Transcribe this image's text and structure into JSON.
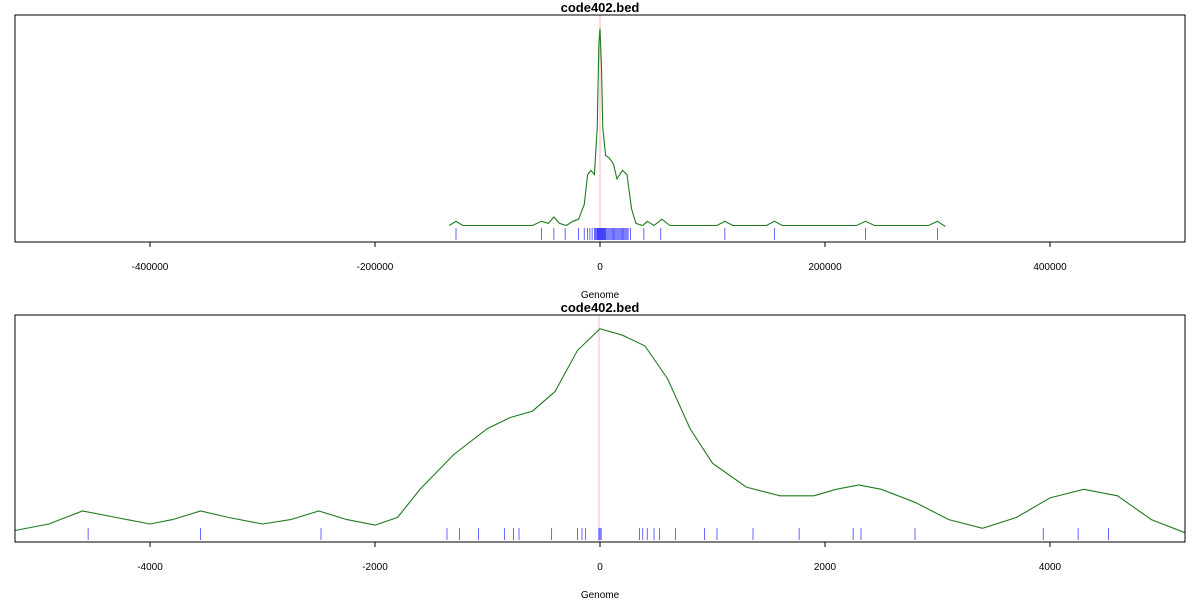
{
  "chart_data": [
    {
      "type": "line",
      "title": "code402.bed",
      "xlabel": "Genome",
      "ylabel": "",
      "xlim": [
        -520000,
        520000
      ],
      "xticks": [
        -400000,
        -200000,
        0,
        200000,
        400000
      ],
      "tick_labels": [
        "-400000",
        "-200000",
        "0",
        "200000",
        "400000"
      ],
      "marker_line_x": 0,
      "ylim": [
        0,
        1.0
      ],
      "series": [
        {
          "values": [
            {
              "x": -134000,
              "y": 0.04
            },
            {
              "x": -128000,
              "y": 0.06
            },
            {
              "x": -122000,
              "y": 0.04
            },
            {
              "x": -60000,
              "y": 0.04
            },
            {
              "x": -52000,
              "y": 0.06
            },
            {
              "x": -46000,
              "y": 0.05
            },
            {
              "x": -41000,
              "y": 0.08
            },
            {
              "x": -36000,
              "y": 0.05
            },
            {
              "x": -30000,
              "y": 0.04
            },
            {
              "x": -24000,
              "y": 0.06
            },
            {
              "x": -19000,
              "y": 0.07
            },
            {
              "x": -14000,
              "y": 0.14
            },
            {
              "x": -11000,
              "y": 0.28
            },
            {
              "x": -8000,
              "y": 0.3
            },
            {
              "x": -5000,
              "y": 0.28
            },
            {
              "x": -2500,
              "y": 0.5
            },
            {
              "x": -1000,
              "y": 0.9
            },
            {
              "x": 0,
              "y": 0.97
            },
            {
              "x": 1200,
              "y": 0.8
            },
            {
              "x": 2500,
              "y": 0.5
            },
            {
              "x": 5000,
              "y": 0.37
            },
            {
              "x": 8000,
              "y": 0.36
            },
            {
              "x": 12000,
              "y": 0.33
            },
            {
              "x": 15000,
              "y": 0.26
            },
            {
              "x": 20000,
              "y": 0.3
            },
            {
              "x": 24000,
              "y": 0.28
            },
            {
              "x": 28000,
              "y": 0.12
            },
            {
              "x": 32000,
              "y": 0.05
            },
            {
              "x": 38000,
              "y": 0.04
            },
            {
              "x": 42000,
              "y": 0.06
            },
            {
              "x": 48000,
              "y": 0.04
            },
            {
              "x": 55000,
              "y": 0.07
            },
            {
              "x": 62000,
              "y": 0.04
            },
            {
              "x": 104000,
              "y": 0.04
            },
            {
              "x": 111000,
              "y": 0.06
            },
            {
              "x": 118000,
              "y": 0.04
            },
            {
              "x": 148000,
              "y": 0.04
            },
            {
              "x": 155000,
              "y": 0.06
            },
            {
              "x": 162000,
              "y": 0.04
            },
            {
              "x": 228000,
              "y": 0.04
            },
            {
              "x": 236000,
              "y": 0.06
            },
            {
              "x": 244000,
              "y": 0.04
            },
            {
              "x": 292000,
              "y": 0.04
            },
            {
              "x": 300000,
              "y": 0.06
            },
            {
              "x": 307000,
              "y": 0.035
            }
          ]
        }
      ],
      "rug": [
        -128000,
        -52000,
        -41000,
        -31000,
        -19000,
        -14000,
        -11000,
        -9000,
        -7000,
        -5000,
        -4000,
        -3000,
        -2500,
        -2000,
        -1500,
        -1000,
        -600,
        -300,
        0,
        300,
        600,
        1000,
        1500,
        2000,
        2500,
        3000,
        3500,
        4000,
        4500,
        5000,
        6000,
        7000,
        8000,
        9000,
        10000,
        11000,
        12000,
        13000,
        14000,
        15000,
        16000,
        17000,
        18000,
        19000,
        20000,
        21000,
        22000,
        23000,
        24000,
        25000,
        27000,
        39000,
        54000,
        111000,
        155000,
        236000,
        300000
      ]
    },
    {
      "type": "line",
      "title": "code402.bed",
      "xlabel": "Genome",
      "ylabel": "",
      "xlim": [
        -5200,
        5200
      ],
      "xticks": [
        -4000,
        -2000,
        0,
        2000,
        4000
      ],
      "tick_labels": [
        "-4000",
        "-2000",
        "0",
        "2000",
        "4000"
      ],
      "marker_line_x": 0,
      "ylim": [
        0,
        1.0
      ],
      "series": [
        {
          "values": [
            {
              "x": -5200,
              "y": 0.03
            },
            {
              "x": -4900,
              "y": 0.06
            },
            {
              "x": -4600,
              "y": 0.12
            },
            {
              "x": -4300,
              "y": 0.09
            },
            {
              "x": -4000,
              "y": 0.06
            },
            {
              "x": -3800,
              "y": 0.08
            },
            {
              "x": -3550,
              "y": 0.12
            },
            {
              "x": -3300,
              "y": 0.09
            },
            {
              "x": -3000,
              "y": 0.06
            },
            {
              "x": -2750,
              "y": 0.08
            },
            {
              "x": -2500,
              "y": 0.12
            },
            {
              "x": -2250,
              "y": 0.08
            },
            {
              "x": -2000,
              "y": 0.055
            },
            {
              "x": -1800,
              "y": 0.09
            },
            {
              "x": -1600,
              "y": 0.22
            },
            {
              "x": -1300,
              "y": 0.38
            },
            {
              "x": -1000,
              "y": 0.5
            },
            {
              "x": -800,
              "y": 0.55
            },
            {
              "x": -600,
              "y": 0.58
            },
            {
              "x": -400,
              "y": 0.67
            },
            {
              "x": -200,
              "y": 0.86
            },
            {
              "x": 0,
              "y": 0.96
            },
            {
              "x": 200,
              "y": 0.93
            },
            {
              "x": 400,
              "y": 0.88
            },
            {
              "x": 600,
              "y": 0.73
            },
            {
              "x": 800,
              "y": 0.5
            },
            {
              "x": 1000,
              "y": 0.34
            },
            {
              "x": 1300,
              "y": 0.23
            },
            {
              "x": 1600,
              "y": 0.19
            },
            {
              "x": 1900,
              "y": 0.19
            },
            {
              "x": 2100,
              "y": 0.22
            },
            {
              "x": 2300,
              "y": 0.24
            },
            {
              "x": 2500,
              "y": 0.22
            },
            {
              "x": 2800,
              "y": 0.16
            },
            {
              "x": 3100,
              "y": 0.08
            },
            {
              "x": 3400,
              "y": 0.04
            },
            {
              "x": 3700,
              "y": 0.09
            },
            {
              "x": 4000,
              "y": 0.18
            },
            {
              "x": 4300,
              "y": 0.22
            },
            {
              "x": 4600,
              "y": 0.19
            },
            {
              "x": 4900,
              "y": 0.08
            },
            {
              "x": 5200,
              "y": 0.02
            }
          ]
        }
      ],
      "rug": [
        -4550,
        -3550,
        -2480,
        -1360,
        -1250,
        -1080,
        -850,
        -770,
        -720,
        -430,
        -200,
        -160,
        -130,
        -10,
        0,
        10,
        350,
        380,
        420,
        480,
        530,
        670,
        930,
        1040,
        1360,
        1770,
        2250,
        2320,
        2800,
        3940,
        4250,
        4520
      ]
    }
  ],
  "colors": {
    "density_line": "#1f7a1f",
    "rug": "#4040ff",
    "center_line": "#ffb6c1",
    "frame": "#000000"
  }
}
